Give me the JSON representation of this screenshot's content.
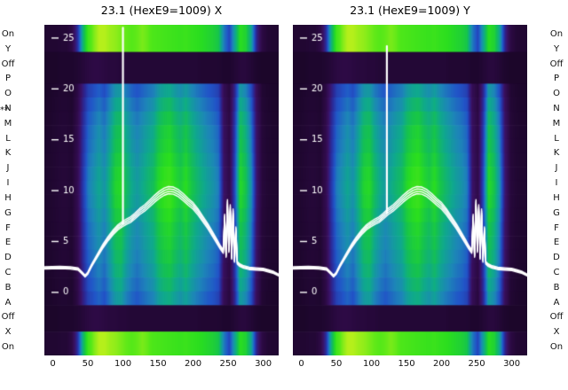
{
  "side_labels": {
    "left": [
      "On",
      "Y",
      "Off",
      "P",
      "O",
      "N",
      "M",
      "L",
      "K",
      "J",
      "I",
      "H",
      "G",
      "F",
      "E",
      "D",
      "C",
      "B",
      "A",
      "Off",
      "X",
      "On"
    ],
    "right": [
      "On",
      "Y",
      "Off",
      "P",
      "O",
      "N",
      "M",
      "L",
      "K",
      "J",
      "I",
      "H",
      "G",
      "F",
      "E",
      "D",
      "C",
      "B",
      "A",
      "Off",
      "X",
      "On"
    ],
    "marker": "**",
    "marker_row": 5
  },
  "chart_data": {
    "type": "heatmap",
    "charts": [
      {
        "title": "23.1 (HexE9=1009) X",
        "spike_x": 100,
        "spike_top": 26.0
      },
      {
        "title": "23.1 (HexE9=1009) Y",
        "spike_x": 122,
        "spike_top": 24.2
      }
    ],
    "xlim": [
      -12,
      322
    ],
    "ylim": [
      -6.2,
      26.3
    ],
    "x_ticks": [
      0,
      50,
      100,
      150,
      200,
      250,
      300
    ],
    "y_ticks": [
      0,
      5,
      10,
      15,
      20,
      25
    ],
    "grid": false,
    "legend": "none",
    "colormap": [
      [
        0.0,
        "#14041f"
      ],
      [
        0.1,
        "#2d0a45"
      ],
      [
        0.2,
        "#3a1266"
      ],
      [
        0.3,
        "#2a2a9a"
      ],
      [
        0.42,
        "#2155c8"
      ],
      [
        0.52,
        "#1d86b8"
      ],
      [
        0.62,
        "#0fa88e"
      ],
      [
        0.72,
        "#15c24f"
      ],
      [
        0.82,
        "#2ade1f"
      ],
      [
        0.92,
        "#55e818"
      ],
      [
        1.0,
        "#b5ef1b"
      ]
    ],
    "row_bands": [
      {
        "y0": 0.0,
        "y1": 0.082,
        "profile": "bright"
      },
      {
        "y0": 0.082,
        "y1": 0.178,
        "profile": "dark"
      },
      {
        "y0": 0.178,
        "y1": 0.848,
        "profile": "center"
      },
      {
        "y0": 0.848,
        "y1": 0.928,
        "profile": "dark"
      },
      {
        "y0": 0.928,
        "y1": 1.0,
        "profile": "bright"
      }
    ],
    "center_row_gain": [
      0.8,
      0.88,
      0.95,
      1.0,
      1.02,
      1.06,
      1.1,
      1.12,
      1.1,
      1.06,
      1.02,
      1.0,
      0.97,
      0.93,
      0.88,
      0.82
    ],
    "col_profiles": {
      "center": [
        0.04,
        0.04,
        0.05,
        0.06,
        0.06,
        0.05,
        0.12,
        0.3,
        0.45,
        0.5,
        0.55,
        0.5,
        0.6,
        0.7,
        0.72,
        0.62,
        0.56,
        0.52,
        0.56,
        0.6,
        0.63,
        0.72,
        0.76,
        0.78,
        0.72,
        0.68,
        0.73,
        0.66,
        0.61,
        0.57,
        0.53,
        0.5,
        0.45,
        0.18,
        0.1,
        0.35,
        0.72,
        0.65,
        0.5,
        0.2,
        0.07,
        0.05,
        0.04,
        0.04
      ],
      "bright": [
        0.05,
        0.05,
        0.05,
        0.06,
        0.06,
        0.1,
        0.3,
        0.65,
        0.88,
        0.95,
        1.0,
        1.0,
        0.98,
        0.97,
        0.95,
        0.93,
        0.92,
        0.93,
        0.95,
        0.93,
        0.9,
        0.89,
        0.88,
        0.87,
        0.86,
        0.85,
        0.86,
        0.84,
        0.83,
        0.81,
        0.79,
        0.77,
        0.73,
        0.5,
        0.38,
        0.6,
        0.82,
        0.78,
        0.62,
        0.28,
        0.1,
        0.06,
        0.05,
        0.05
      ],
      "dark": [
        0.03,
        0.03,
        0.03,
        0.04,
        0.04,
        0.04,
        0.05,
        0.07,
        0.09,
        0.1,
        0.1,
        0.09,
        0.08,
        0.08,
        0.07,
        0.07,
        0.06,
        0.06,
        0.06,
        0.06,
        0.06,
        0.06,
        0.06,
        0.06,
        0.06,
        0.06,
        0.06,
        0.06,
        0.06,
        0.05,
        0.05,
        0.05,
        0.05,
        0.04,
        0.04,
        0.06,
        0.08,
        0.08,
        0.06,
        0.04,
        0.03,
        0.03,
        0.03,
        0.03
      ]
    },
    "line": {
      "color": "#ffffff",
      "trace_offsets": [
        -0.35,
        -0.12,
        0.12,
        0.35
      ],
      "points": [
        [
          -12,
          2.4
        ],
        [
          10,
          2.45
        ],
        [
          25,
          2.4
        ],
        [
          36,
          2.3
        ],
        [
          42,
          1.9
        ],
        [
          46,
          1.6
        ],
        [
          50,
          1.9
        ],
        [
          55,
          2.6
        ],
        [
          60,
          3.2
        ],
        [
          66,
          3.9
        ],
        [
          72,
          4.6
        ],
        [
          79,
          5.3
        ],
        [
          86,
          5.9
        ],
        [
          93,
          6.4
        ],
        [
          99,
          6.7
        ],
        [
          105,
          6.95
        ],
        [
          111,
          7.15
        ],
        [
          117,
          7.5
        ],
        [
          124,
          7.95
        ],
        [
          131,
          8.3
        ],
        [
          138,
          8.75
        ],
        [
          145,
          9.2
        ],
        [
          152,
          9.6
        ],
        [
          159,
          9.9
        ],
        [
          165,
          10.05
        ],
        [
          172,
          10.0
        ],
        [
          179,
          9.75
        ],
        [
          186,
          9.35
        ],
        [
          193,
          8.9
        ],
        [
          200,
          8.5
        ],
        [
          207,
          7.9
        ],
        [
          214,
          7.2
        ],
        [
          221,
          6.5
        ],
        [
          228,
          5.7
        ],
        [
          234,
          5.0
        ],
        [
          239,
          4.4
        ],
        [
          243,
          4.0
        ],
        [
          245,
          7.4
        ],
        [
          247,
          3.6
        ],
        [
          249,
          8.8
        ],
        [
          251,
          4.1
        ],
        [
          253,
          8.3
        ],
        [
          255,
          3.4
        ],
        [
          257,
          7.9
        ],
        [
          259,
          3.1
        ],
        [
          261,
          6.2
        ],
        [
          263,
          2.9
        ],
        [
          266,
          2.7
        ],
        [
          272,
          2.5
        ],
        [
          280,
          2.35
        ],
        [
          290,
          2.3
        ],
        [
          300,
          2.25
        ],
        [
          308,
          2.1
        ],
        [
          315,
          1.95
        ],
        [
          322,
          1.7
        ]
      ]
    }
  }
}
